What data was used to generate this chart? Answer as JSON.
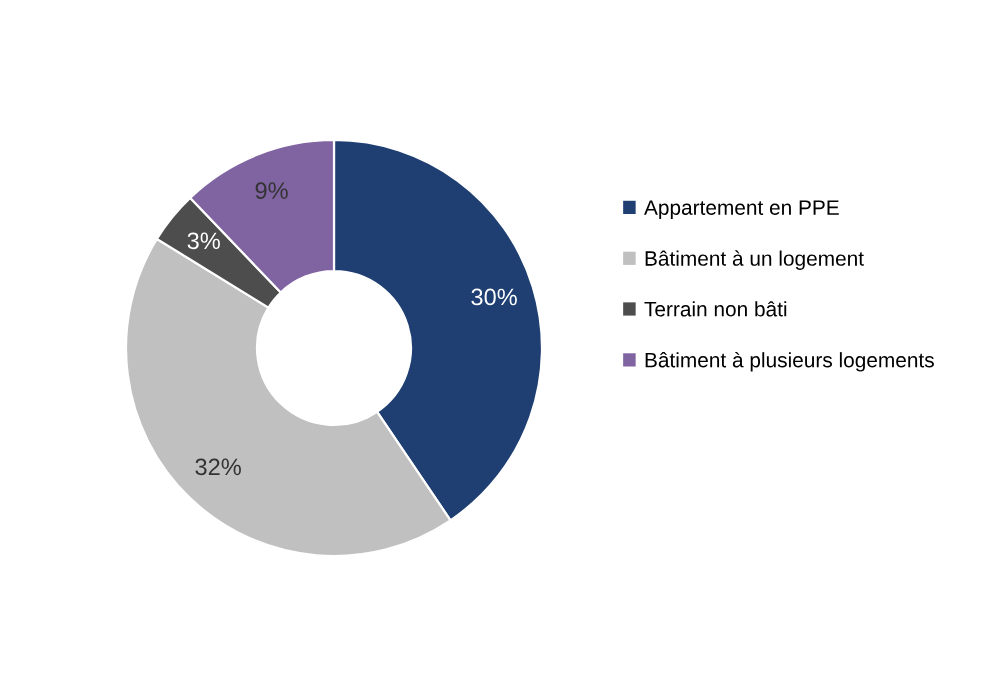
{
  "chart_data": {
    "type": "donut",
    "categories": [
      "Appartement en PPE",
      "Bâtiment à un logement",
      "Terrain non bâti",
      "Bâtiment à plusieurs logements"
    ],
    "values": [
      30,
      32,
      3,
      9
    ],
    "colors": [
      "#1f3f73",
      "#c0c0c0",
      "#4d4d4d",
      "#8064a2"
    ],
    "value_labels": [
      "30%",
      "32%",
      "3%",
      "9%"
    ],
    "legend": "right"
  }
}
